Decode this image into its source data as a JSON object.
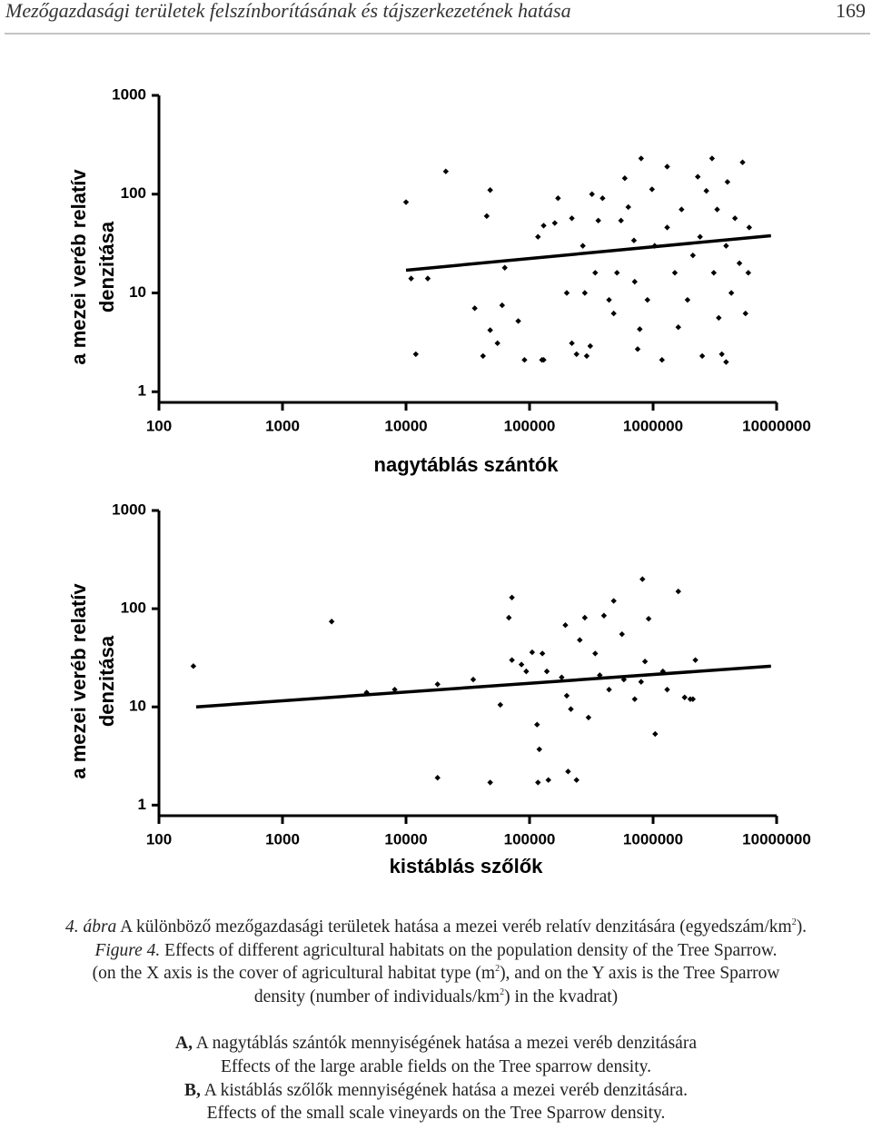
{
  "header": {
    "title": "Mezőgazdasági területek felszínborításának és tájszerkezetének hatása",
    "page": "169"
  },
  "chart_data": [
    {
      "type": "scatter",
      "color": "#000000",
      "xscale": "log",
      "yscale": "log",
      "xlabel": "nagytáblás szántók",
      "ylabel": [
        "a mezei veréb relatív",
        "denzitása"
      ],
      "xlim": [
        100,
        10000000
      ],
      "ylim": [
        0.78,
        1000
      ],
      "xticks": [
        100,
        1000,
        10000,
        100000,
        1000000,
        10000000
      ],
      "yticks": [
        1,
        10,
        100,
        1000
      ],
      "x": [
        10000,
        11000,
        12000,
        15000,
        21000,
        48000,
        45000,
        36000,
        48000,
        55000,
        42000,
        60000,
        63000,
        81000,
        91000,
        126000,
        130000,
        117000,
        130000,
        160000,
        170000,
        220000,
        200000,
        220000,
        240000,
        310000,
        290000,
        270000,
        320000,
        390000,
        360000,
        340000,
        280000,
        440000,
        480000,
        550000,
        590000,
        630000,
        510000,
        700000,
        710000,
        780000,
        750000,
        800000,
        900000,
        980000,
        1030000,
        1180000,
        1300000,
        1300000,
        1500000,
        1600000,
        1700000,
        1900000,
        2100000,
        2300000,
        2400000,
        2500000,
        2700000,
        3000000,
        3100000,
        3300000,
        3400000,
        3600000,
        3900000,
        4000000,
        4300000,
        4600000,
        5000000,
        5300000,
        5600000,
        6000000,
        5900000,
        3900000
      ],
      "values": [
        83,
        14,
        2.4,
        14,
        170,
        110,
        60,
        7,
        4.2,
        3.1,
        2.3,
        7.5,
        18,
        5.2,
        2.1,
        2.1,
        2.1,
        37,
        48,
        51,
        91,
        57,
        10,
        3.1,
        2.4,
        2.9,
        2.3,
        30,
        100,
        91,
        54,
        16,
        10,
        8.5,
        6.2,
        54,
        145,
        74,
        16,
        34,
        13,
        4.3,
        2.7,
        230,
        8.5,
        112,
        30,
        2.1,
        46,
        190,
        16,
        4.5,
        70,
        8.5,
        24,
        150,
        37,
        2.3,
        108,
        230,
        16,
        70,
        5.6,
        2.4,
        30,
        133,
        10,
        57,
        20,
        210,
        6.2,
        46,
        16,
        2
      ],
      "trend": {
        "x": [
          10000,
          9000000
        ],
        "values": [
          17,
          38
        ]
      }
    },
    {
      "type": "scatter",
      "color": "#000000",
      "xscale": "log",
      "yscale": "log",
      "xlabel": "kistáblás szőlők",
      "ylabel": [
        "a mezei veréb relatív",
        "denzitása"
      ],
      "xlim": [
        100,
        10000000
      ],
      "ylim": [
        0.78,
        1000
      ],
      "xticks": [
        100,
        1000,
        10000,
        100000,
        1000000,
        10000000
      ],
      "yticks": [
        1,
        10,
        100,
        1000
      ],
      "x": [
        190,
        2500,
        4800,
        8100,
        18000,
        18000,
        35000,
        48000,
        58000,
        68000,
        72000,
        72000,
        86000,
        94000,
        105000,
        115000,
        120000,
        117000,
        127000,
        138000,
        142000,
        182000,
        195000,
        200000,
        205000,
        216000,
        240000,
        255000,
        280000,
        300000,
        340000,
        370000,
        400000,
        440000,
        480000,
        560000,
        580000,
        710000,
        800000,
        820000,
        860000,
        920000,
        1040000,
        1200000,
        1300000,
        1600000,
        1800000,
        2100000,
        2200000,
        2000000
      ],
      "values": [
        26,
        74,
        14,
        15,
        17,
        1.9,
        19,
        1.7,
        10.5,
        81,
        130,
        30,
        27,
        23,
        36,
        6.6,
        3.7,
        1.7,
        35,
        23,
        1.8,
        20,
        68,
        13,
        2.2,
        9.5,
        1.8,
        48,
        81,
        7.8,
        35,
        21,
        85,
        15,
        120,
        55,
        19,
        12,
        18,
        200,
        29,
        79,
        5.3,
        23,
        15,
        150,
        12.5,
        12,
        30,
        12
      ],
      "trend": {
        "x": [
          200,
          9000000
        ],
        "values": [
          10,
          26
        ]
      }
    }
  ],
  "caption": {
    "hu_label": "4. ábra",
    "hu_text": "A különböző mezőgazdasági területek hatása a mezei veréb relatív denzitására (egyedszám/km",
    "hu_sup": "2",
    "hu_end": ").",
    "en_label": "Figure 4.",
    "en_text": "Effects of different agricultural habitats on the population density of the Tree Sparrow.",
    "axis_text": "(on the X axis is the cover of agricultural habitat type (m",
    "axis_sup": "2",
    "axis_end": "), and on the Y axis is the Tree Sparrow",
    "density_text": "density (number of individuals/km",
    "density_sup": "2",
    "density_end": ") in the kvadrat)",
    "a_label": "A,",
    "a_hu": "A nagytáblás szántók mennyiségének hatása a mezei veréb denzitására",
    "a_en": "Effects of the large arable fields on the Tree sparrow density.",
    "b_label": "B,",
    "b_hu": "A kistáblás szőlők mennyiségének hatása a mezei veréb denzitására.",
    "b_en": "Effects of the small scale vineyards on the Tree Sparrow density."
  }
}
